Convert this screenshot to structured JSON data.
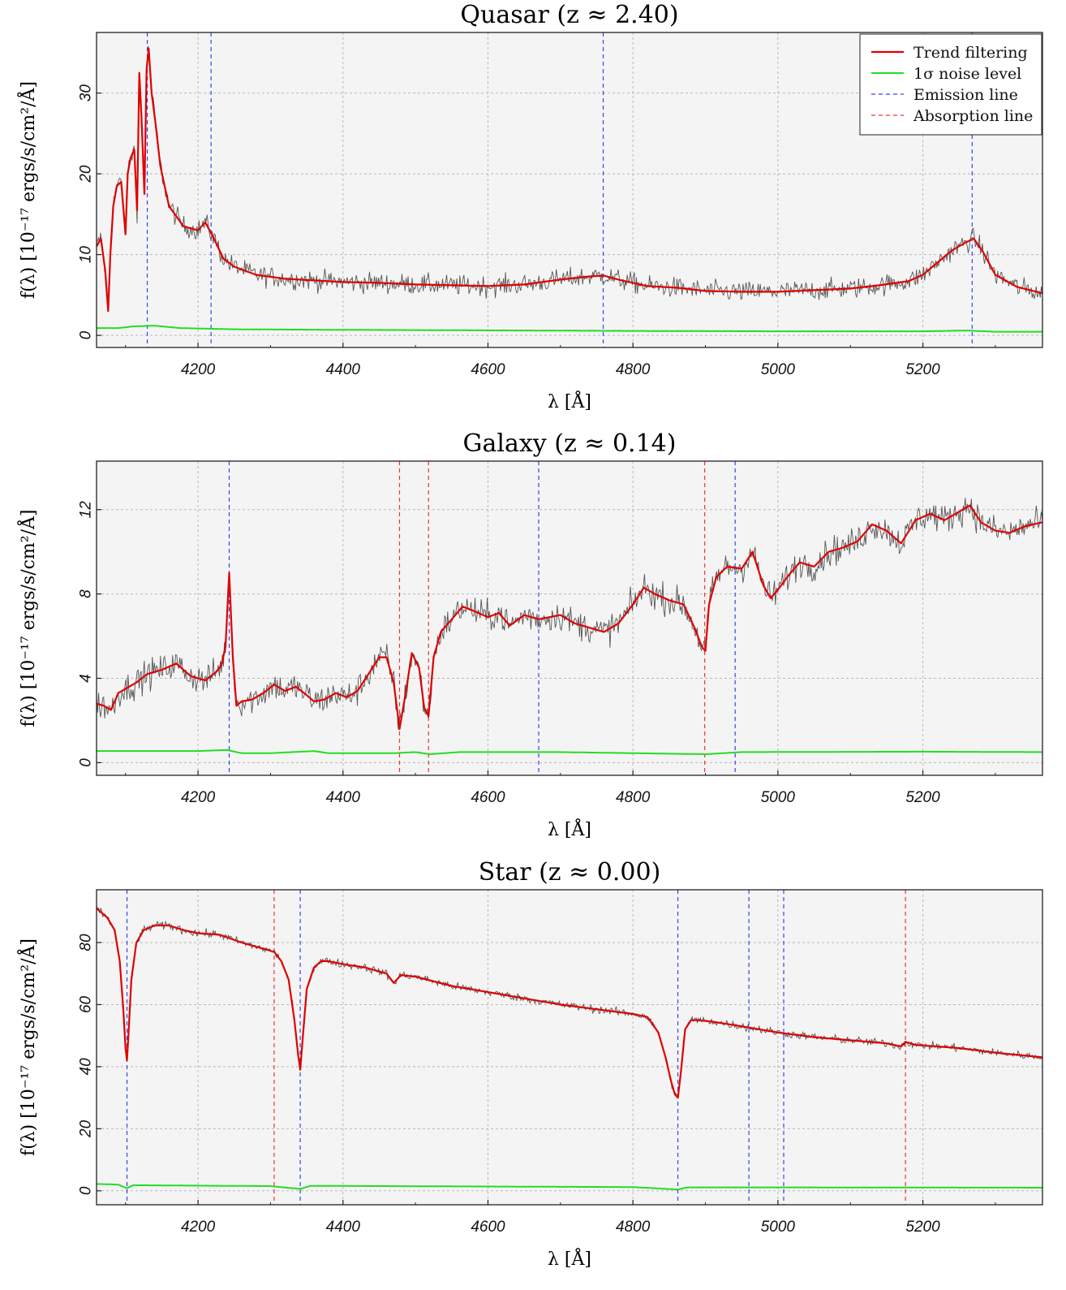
{
  "legend": {
    "trend_label": "Trend filtering",
    "noise_label": "1σ noise level",
    "emission_label": "Emission line",
    "absorption_label": "Absorption line"
  },
  "colors": {
    "raw": "#555555",
    "trend": "#e00000",
    "noise": "#22dd22",
    "emission": "#3344ee",
    "absorption": "#ee3333",
    "plot_bg": "#f4f4f4",
    "grid": "#b8b8b8"
  },
  "chart_data": [
    {
      "type": "line",
      "title": "Quasar (z ≈ 2.40)",
      "xlabel": "λ [Å]",
      "ylabel": "f(λ)  [10⁻¹⁷ ergs/s/cm²/Å]",
      "xlim": [
        4060,
        5365
      ],
      "ylim": [
        -1.5,
        37.5
      ],
      "xticks": [
        4200,
        4400,
        4600,
        4800,
        5000,
        5200
      ],
      "yticks": [
        0,
        10,
        20,
        30
      ],
      "grid": true,
      "legend": "top-right",
      "emission_lines": [
        4130,
        4218,
        4759,
        5268
      ],
      "absorption_lines": [],
      "noise_level": [
        [
          4060,
          0.9
        ],
        [
          4090,
          0.9
        ],
        [
          4110,
          1.1
        ],
        [
          4140,
          1.2
        ],
        [
          4175,
          0.9
        ],
        [
          4250,
          0.75
        ],
        [
          4360,
          0.7
        ],
        [
          4500,
          0.65
        ],
        [
          4800,
          0.55
        ],
        [
          5000,
          0.5
        ],
        [
          5200,
          0.5
        ],
        [
          5260,
          0.6
        ],
        [
          5300,
          0.45
        ],
        [
          5365,
          0.45
        ]
      ],
      "series": [
        {
          "name": "Trend filtering",
          "noise": 0.9,
          "x": [
            4060,
            4066,
            4072,
            4076,
            4079,
            4083,
            4088,
            4094,
            4100,
            4103,
            4107,
            4112,
            4116,
            4119,
            4122,
            4126,
            4129,
            4132,
            4136,
            4141,
            4148,
            4160,
            4180,
            4200,
            4210,
            4222,
            4235,
            4250,
            4280,
            4320,
            4360,
            4400,
            4450,
            4500,
            4550,
            4600,
            4650,
            4700,
            4740,
            4760,
            4780,
            4820,
            4860,
            4900,
            4950,
            5000,
            5050,
            5100,
            5140,
            5180,
            5200,
            5220,
            5240,
            5255,
            5270,
            5282,
            5300,
            5330,
            5365
          ],
          "y": [
            11,
            12,
            8,
            3,
            10,
            16,
            18.5,
            19,
            12.5,
            20,
            22,
            23,
            15.5,
            32.5,
            27,
            17.5,
            33,
            35.5,
            30,
            26.5,
            21,
            16,
            13.5,
            13,
            14,
            12,
            9.5,
            8.5,
            7.5,
            7,
            6.8,
            6.6,
            6.5,
            6.3,
            6.2,
            6.1,
            6.3,
            6.9,
            7.3,
            7.4,
            6.9,
            6.1,
            5.9,
            5.5,
            5.4,
            5.4,
            5.6,
            5.8,
            6.2,
            6.7,
            7.5,
            9,
            10.5,
            11.3,
            12,
            10.5,
            7.5,
            6,
            5.2
          ]
        }
      ]
    },
    {
      "type": "line",
      "title": "Galaxy (z ≈ 0.14)",
      "xlabel": "λ [Å]",
      "ylabel": "f(λ)  [10⁻¹⁷ ergs/s/cm²/Å]",
      "xlim": [
        4060,
        5365
      ],
      "ylim": [
        -0.6,
        14.3
      ],
      "xticks": [
        4200,
        4400,
        4600,
        4800,
        5000,
        5200
      ],
      "yticks": [
        0,
        4,
        8,
        12
      ],
      "grid": true,
      "emission_lines": [
        4243,
        4670,
        4941
      ],
      "absorption_lines": [
        4478,
        4518,
        4899
      ],
      "noise_level": [
        [
          4060,
          0.55
        ],
        [
          4200,
          0.55
        ],
        [
          4240,
          0.6
        ],
        [
          4260,
          0.45
        ],
        [
          4300,
          0.45
        ],
        [
          4360,
          0.55
        ],
        [
          4380,
          0.45
        ],
        [
          4470,
          0.45
        ],
        [
          4500,
          0.5
        ],
        [
          4520,
          0.4
        ],
        [
          4560,
          0.5
        ],
        [
          4700,
          0.5
        ],
        [
          4900,
          0.4
        ],
        [
          4950,
          0.5
        ],
        [
          5200,
          0.52
        ],
        [
          5365,
          0.5
        ]
      ],
      "series": [
        {
          "name": "Trend filtering",
          "noise": 0.5,
          "x": [
            4060,
            4070,
            4080,
            4090,
            4100,
            4115,
            4130,
            4150,
            4170,
            4190,
            4210,
            4225,
            4232,
            4238,
            4243,
            4248,
            4253,
            4260,
            4275,
            4290,
            4305,
            4320,
            4335,
            4350,
            4360,
            4375,
            4390,
            4405,
            4420,
            4435,
            4450,
            4460,
            4470,
            4478,
            4486,
            4495,
            4505,
            4512,
            4518,
            4525,
            4535,
            4550,
            4565,
            4580,
            4600,
            4615,
            4630,
            4650,
            4670,
            4700,
            4720,
            4740,
            4760,
            4780,
            4800,
            4815,
            4830,
            4850,
            4870,
            4885,
            4895,
            4900,
            4905,
            4915,
            4930,
            4950,
            4965,
            4980,
            4990,
            5000,
            5015,
            5030,
            5050,
            5070,
            5090,
            5110,
            5130,
            5150,
            5170,
            5190,
            5210,
            5230,
            5250,
            5265,
            5280,
            5300,
            5320,
            5340,
            5365
          ],
          "y": [
            2.8,
            2.7,
            2.5,
            3.3,
            3.5,
            3.8,
            4.2,
            4.4,
            4.7,
            4.1,
            3.9,
            4.3,
            4.6,
            5.5,
            9,
            5,
            2.7,
            2.9,
            3,
            3.3,
            3.7,
            3.4,
            3.6,
            3.2,
            2.9,
            3,
            3.3,
            3.1,
            3.4,
            4.2,
            5,
            5,
            3.8,
            1.6,
            3.2,
            5.2,
            4.5,
            2.6,
            2.2,
            5,
            6.2,
            6.8,
            7.4,
            7.2,
            6.9,
            7.1,
            6.5,
            7,
            6.8,
            7,
            6.6,
            6.4,
            6.2,
            6.6,
            7.5,
            8.3,
            8,
            7.7,
            7.5,
            6.4,
            5.5,
            5.3,
            7.5,
            8.8,
            9.3,
            9.2,
            10,
            8.4,
            7.8,
            8.2,
            8.9,
            9.5,
            9.3,
            10,
            10.2,
            10.5,
            11.3,
            11,
            10.4,
            11.5,
            11.8,
            11.5,
            11.9,
            12.2,
            11.4,
            11,
            10.9,
            11.2,
            11.4
          ]
        }
      ]
    },
    {
      "type": "line",
      "title": "Star (z ≈ 0.00)",
      "xlabel": "λ [Å]",
      "ylabel": "f(λ)  [10⁻¹⁷ ergs/s/cm²/Å]",
      "xlim": [
        4060,
        5365
      ],
      "ylim": [
        -4.5,
        97
      ],
      "xticks": [
        4200,
        4400,
        4600,
        4800,
        5000,
        5200
      ],
      "yticks": [
        0,
        20,
        40,
        60,
        80
      ],
      "grid": true,
      "emission_lines": [
        4102,
        4341,
        4862,
        4960,
        5008
      ],
      "absorption_lines": [
        4305,
        5176
      ],
      "noise_level": [
        [
          4060,
          2.2
        ],
        [
          4090,
          2
        ],
        [
          4102,
          0.8
        ],
        [
          4110,
          1.8
        ],
        [
          4300,
          1.5
        ],
        [
          4341,
          0.6
        ],
        [
          4355,
          1.6
        ],
        [
          4800,
          1.2
        ],
        [
          4862,
          0.4
        ],
        [
          4875,
          1.1
        ],
        [
          5000,
          1.1
        ],
        [
          5365,
          1
        ]
      ],
      "series": [
        {
          "name": "Trend filtering",
          "noise": 0.9,
          "x": [
            4060,
            4075,
            4085,
            4092,
            4097,
            4100,
            4102,
            4104,
            4108,
            4115,
            4125,
            4140,
            4160,
            4180,
            4200,
            4230,
            4260,
            4290,
            4305,
            4315,
            4325,
            4333,
            4338,
            4341,
            4344,
            4350,
            4360,
            4370,
            4380,
            4400,
            4430,
            4460,
            4470,
            4480,
            4500,
            4550,
            4600,
            4650,
            4700,
            4750,
            4800,
            4820,
            4835,
            4845,
            4853,
            4858,
            4862,
            4866,
            4872,
            4880,
            4890,
            4910,
            4950,
            5000,
            5050,
            5100,
            5150,
            5170,
            5176,
            5190,
            5250,
            5300,
            5365
          ],
          "y": [
            91,
            88,
            84,
            74,
            58,
            46,
            42,
            50,
            68,
            80,
            84,
            85.5,
            85.5,
            84,
            83,
            82.5,
            80,
            78,
            77,
            74,
            68,
            55,
            44,
            39,
            48,
            65,
            72,
            74,
            74,
            73,
            72,
            70,
            67,
            69.5,
            69,
            66,
            64,
            62,
            60,
            58.5,
            57,
            56,
            51,
            43,
            35,
            31,
            30,
            38,
            52,
            55,
            55,
            54.5,
            53,
            51,
            49.5,
            48.5,
            47.5,
            46.5,
            48,
            47,
            46,
            44.5,
            43
          ]
        }
      ]
    }
  ]
}
